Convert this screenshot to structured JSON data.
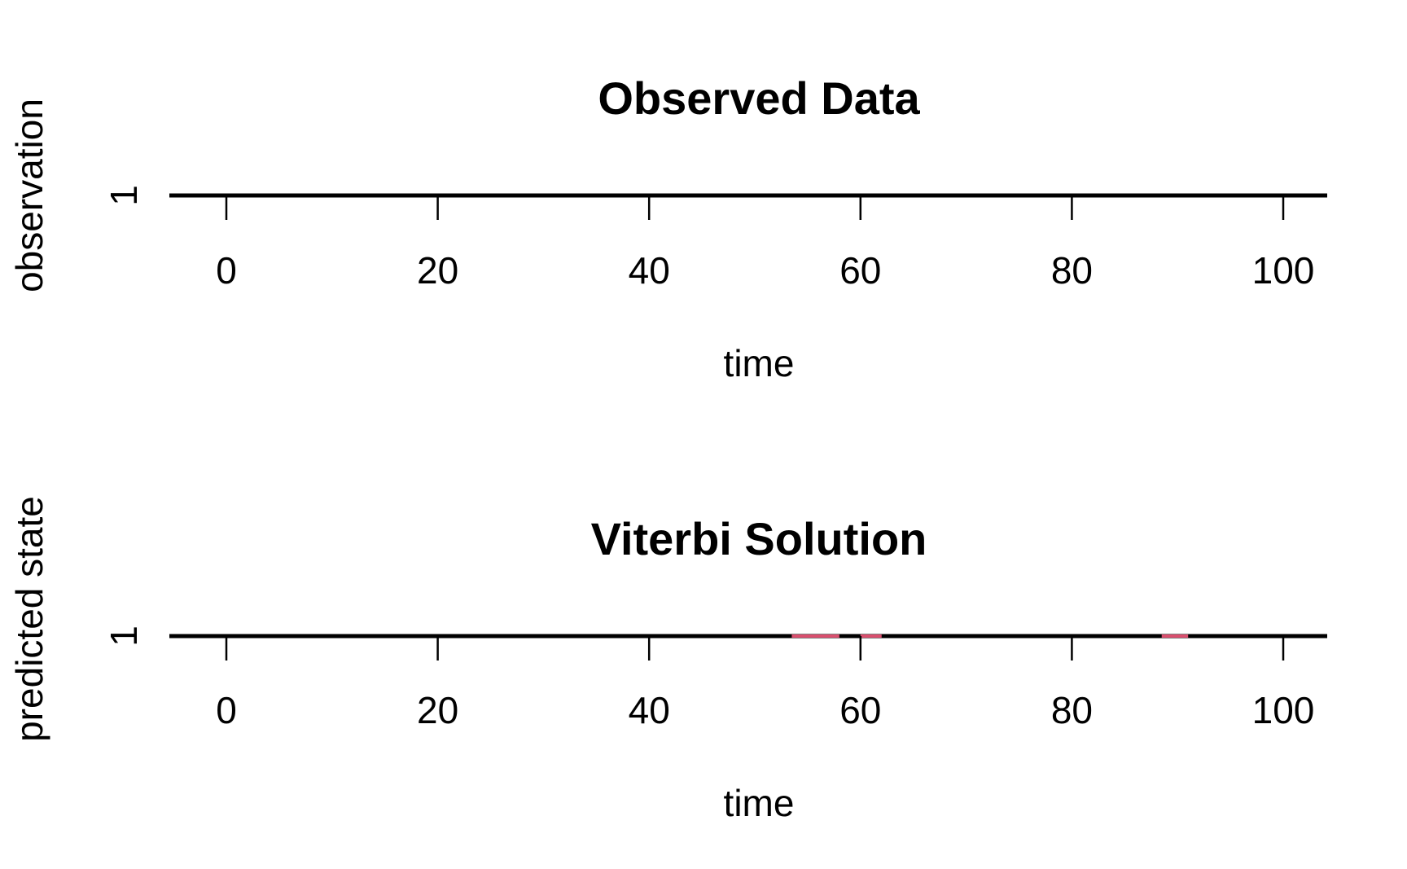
{
  "chart_data": [
    {
      "type": "line",
      "title": "Observed Data",
      "xlabel": "time",
      "ylabel": "observation",
      "x_ticks": [
        0,
        20,
        40,
        60,
        80,
        100
      ],
      "y_ticks": [
        1
      ],
      "xlim": [
        -5,
        104
      ],
      "series": [
        {
          "color": "#000000",
          "x": [
            -5,
            104
          ],
          "y": [
            1,
            1
          ]
        }
      ]
    },
    {
      "type": "line",
      "title": "Viterbi Solution",
      "xlabel": "time",
      "ylabel": "predicted state",
      "x_ticks": [
        0,
        20,
        40,
        60,
        80,
        100
      ],
      "y_ticks": [
        1
      ],
      "xlim": [
        -5,
        104
      ],
      "series": [
        {
          "color": "#000000",
          "x": [
            -5,
            104
          ],
          "y": [
            1,
            1
          ]
        }
      ],
      "highlight_segments": [
        {
          "color": "#d94f6e",
          "x": [
            53.5,
            58
          ]
        },
        {
          "color": "#d94f6e",
          "x": [
            60,
            62
          ]
        },
        {
          "color": "#d94f6e",
          "x": [
            88.5,
            91
          ]
        }
      ]
    }
  ]
}
